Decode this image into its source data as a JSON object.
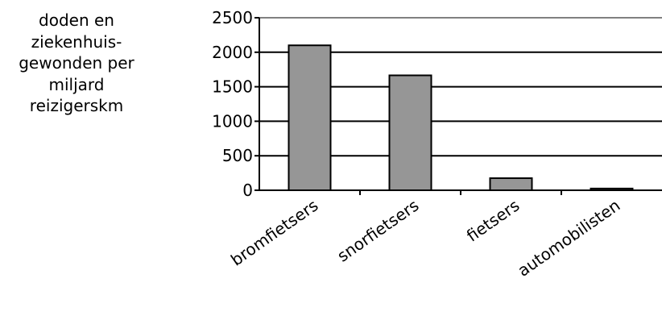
{
  "chart_data": {
    "type": "bar",
    "categories": [
      "bromfietsers",
      "snorfietsers",
      "fietsers",
      "automobilisten"
    ],
    "values": [
      2100,
      1665,
      175,
      25
    ],
    "ylabel": "doden en\nziekenhuis-\ngewonden per\nmiljard\nreizigerskm",
    "xlabel": "",
    "title": "",
    "ylim": [
      0,
      2500
    ],
    "yticks": [
      0,
      500,
      1000,
      1500,
      2000,
      2500
    ],
    "grid": true,
    "legend": "none",
    "bar_color": "#969696",
    "bar_edge_color": "#000000",
    "top_gridline_color": "#808080"
  }
}
